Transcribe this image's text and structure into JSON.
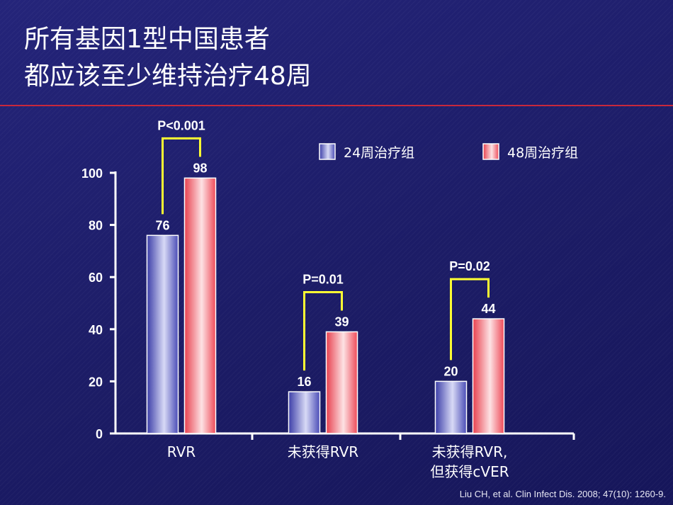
{
  "slide": {
    "title_line1": "所有基因1型中国患者",
    "title_line2": "都应该至少维持治疗48周",
    "citation": "Liu CH, et al. Clin Infect Dis. 2008; 47(10): 1260-9."
  },
  "colors": {
    "background": "#1f1f6e",
    "title_rule": "#c8283c",
    "series_24": "#7478d8",
    "series_48": "#f25a6a",
    "bracket": "#ffff33",
    "axis": "#ffffff"
  },
  "chart_data": {
    "type": "bar",
    "title": "",
    "xlabel": "",
    "ylabel": "",
    "ylim": [
      0,
      100
    ],
    "yticks": [
      0,
      20,
      40,
      60,
      80,
      100
    ],
    "categories": [
      "RVR",
      "未获得RVR",
      "未获得RVR,\n但获得cVER"
    ],
    "series": [
      {
        "name": "24周治疗组",
        "values": [
          76,
          16,
          20
        ]
      },
      {
        "name": "48周治疗组",
        "values": [
          98,
          39,
          44
        ]
      }
    ],
    "data_labels": [
      [
        "76",
        "16",
        "20"
      ],
      [
        "98",
        "39",
        "44"
      ]
    ],
    "p_values": [
      "P<0.001",
      "P=0.01",
      "P=0.02"
    ],
    "legend_position": "top-right",
    "grid": false
  }
}
